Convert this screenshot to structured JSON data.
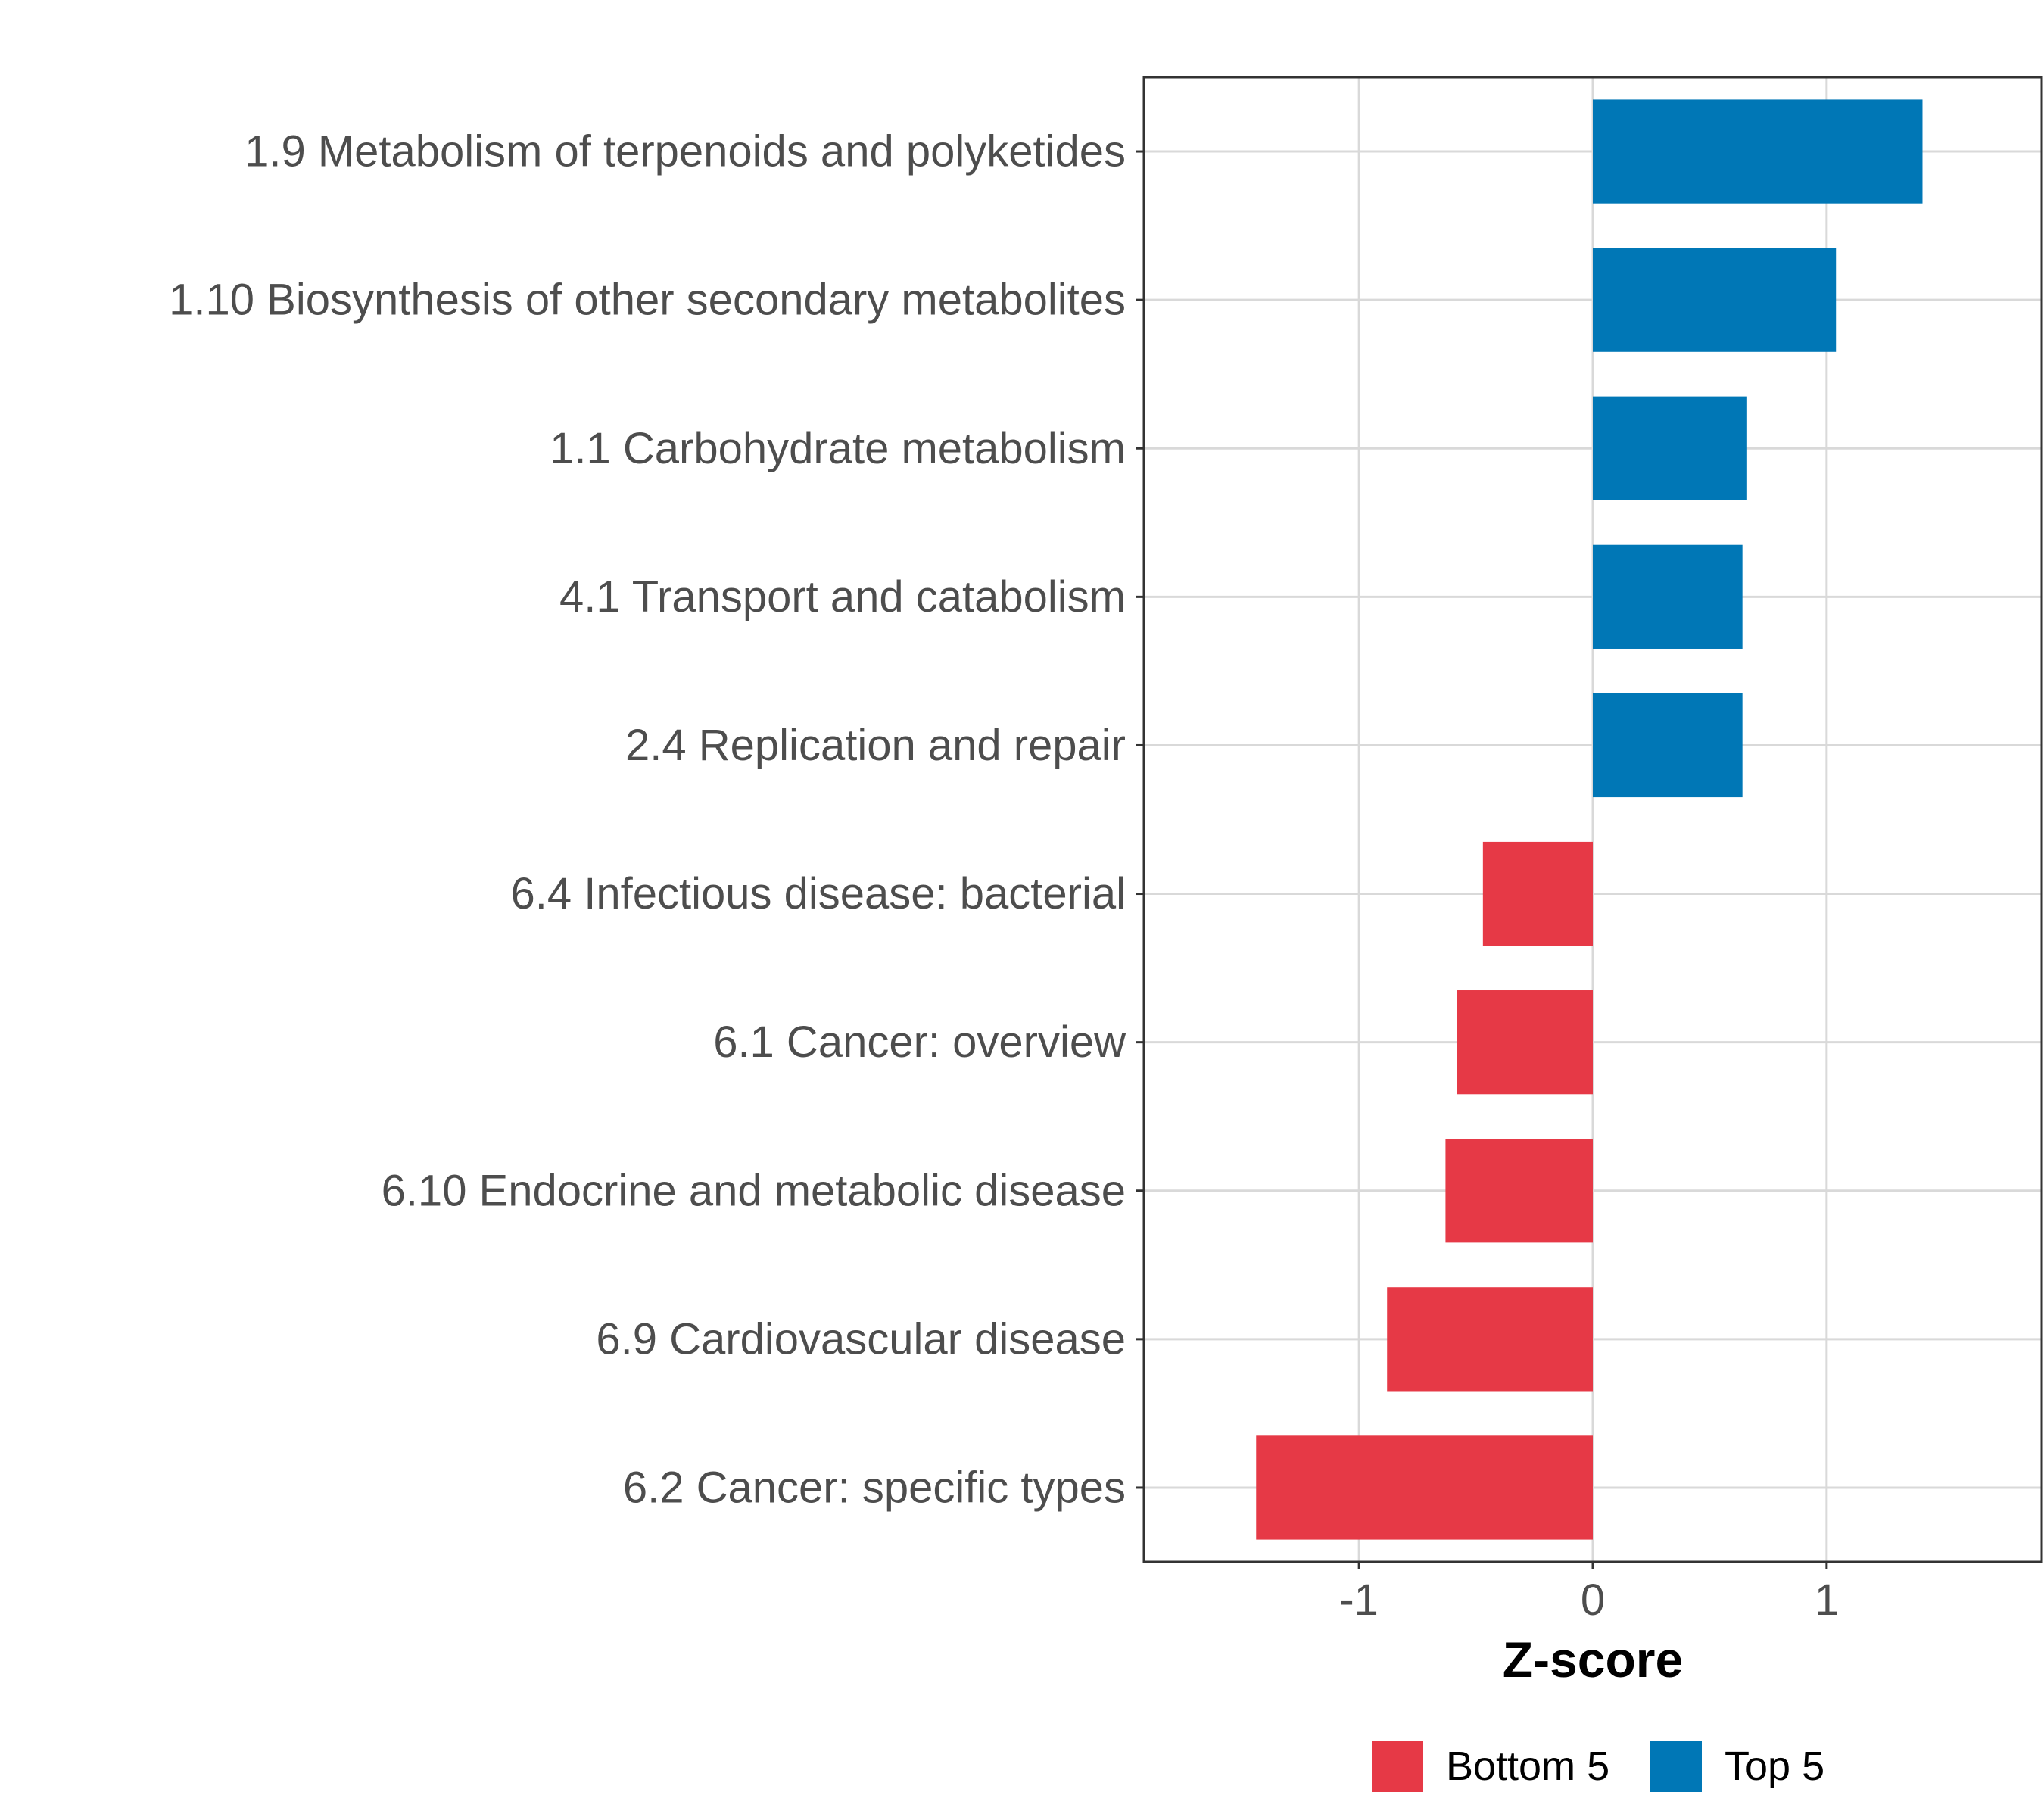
{
  "chart_data": {
    "type": "bar",
    "orientation": "horizontal",
    "categories": [
      "1.9 Metabolism of terpenoids and polyketides",
      "1.10 Biosynthesis of other secondary metabolites",
      "1.1 Carbohydrate metabolism",
      "4.1 Transport and catabolism",
      "2.4 Replication and repair",
      "6.4 Infectious disease: bacterial",
      "6.1 Cancer: overview",
      "6.10 Endocrine and metabolic disease",
      "6.9 Cardiovascular disease",
      "6.2 Cancer: specific types"
    ],
    "values": [
      1.41,
      1.04,
      0.66,
      0.64,
      0.64,
      -0.47,
      -0.58,
      -0.63,
      -0.88,
      -1.44
    ],
    "groups": [
      "Top 5",
      "Top 5",
      "Top 5",
      "Top 5",
      "Top 5",
      "Bottom 5",
      "Bottom 5",
      "Bottom 5",
      "Bottom 5",
      "Bottom 5"
    ],
    "xlabel": "Z-score",
    "ylabel": "",
    "xlim": [
      -1.92,
      1.92
    ],
    "xticks": [
      -1,
      0,
      1
    ],
    "xtick_labels": [
      "-1",
      "0",
      "1"
    ],
    "grid": true,
    "legend": {
      "position": "bottom",
      "entries": [
        {
          "label": "Bottom 5",
          "color": "#e63946"
        },
        {
          "label": "Top 5",
          "color": "#0077b6"
        }
      ]
    },
    "colors": {
      "Top 5": "#0077b6",
      "Bottom 5": "#e63946"
    }
  }
}
